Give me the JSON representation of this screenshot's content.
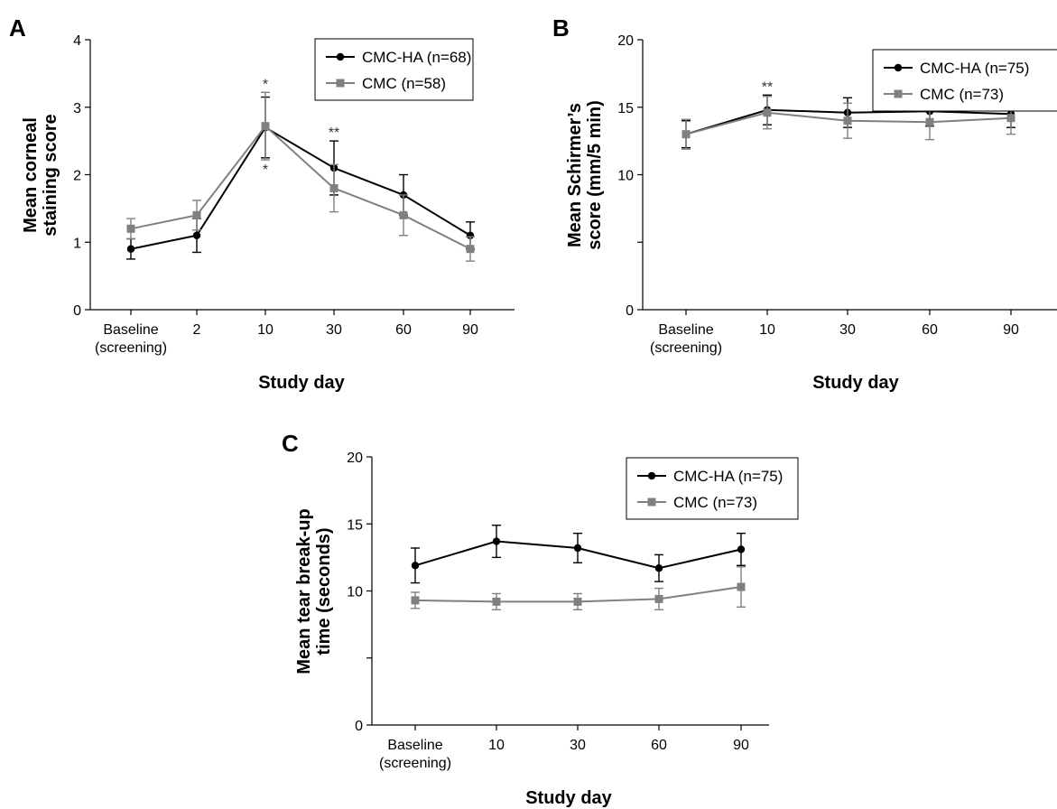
{
  "chart_data": [
    {
      "panel": "A",
      "type": "line",
      "ylabel": "Mean corneal staining score",
      "xlabel": "Study day",
      "ylim": [
        0,
        4
      ],
      "yticks": [
        0,
        1,
        2,
        3,
        4
      ],
      "categories": [
        "Baseline\n(screening)",
        "2",
        "10",
        "30",
        "60",
        "90"
      ],
      "legend_position": "top-right",
      "series": [
        {
          "name": "CMC-HA (n=68)",
          "color": "#000000",
          "marker": "circle",
          "values": [
            0.9,
            1.1,
            2.7,
            2.1,
            1.7,
            1.1
          ],
          "err": [
            0.15,
            0.25,
            0.45,
            0.4,
            0.3,
            0.2
          ]
        },
        {
          "name": "CMC (n=58)",
          "color": "#808080",
          "marker": "square",
          "values": [
            1.2,
            1.4,
            2.72,
            1.8,
            1.4,
            0.9
          ],
          "err": [
            0.15,
            0.22,
            0.5,
            0.35,
            0.3,
            0.18
          ]
        }
      ],
      "annotations": [
        {
          "text": "*",
          "category_index": 2,
          "placement": "above"
        },
        {
          "text": "*",
          "category_index": 2,
          "placement": "below"
        },
        {
          "text": "**",
          "category_index": 3,
          "placement": "above"
        }
      ]
    },
    {
      "panel": "B",
      "type": "line",
      "ylabel": "Mean Schirmer’s score (mm/5 min)",
      "xlabel": "Study day",
      "ylim": [
        0,
        20
      ],
      "yticks": [
        0,
        5,
        10,
        15,
        20
      ],
      "yticks_labeled": [
        0,
        10,
        15,
        20
      ],
      "categories": [
        "Baseline\n(screening)",
        "10",
        "30",
        "60",
        "90"
      ],
      "legend_position": "top-right",
      "series": [
        {
          "name": "CMC-HA (n=75)",
          "color": "#000000",
          "marker": "circle",
          "values": [
            13.0,
            14.8,
            14.6,
            14.7,
            14.5
          ],
          "err": [
            1.0,
            1.1,
            1.1,
            1.1,
            1.0
          ]
        },
        {
          "name": "CMC (n=73)",
          "color": "#808080",
          "marker": "square",
          "values": [
            13.0,
            14.6,
            14.0,
            13.9,
            14.2
          ],
          "err": [
            1.1,
            1.2,
            1.3,
            1.3,
            1.2
          ]
        }
      ],
      "annotations": [
        {
          "text": "**",
          "category_index": 1,
          "placement": "above"
        }
      ]
    },
    {
      "panel": "C",
      "type": "line",
      "ylabel": "Mean tear break-up time (seconds)",
      "xlabel": "Study day",
      "ylim": [
        0,
        20
      ],
      "yticks": [
        0,
        5,
        10,
        15,
        20
      ],
      "yticks_labeled": [
        0,
        10,
        15,
        20
      ],
      "categories": [
        "Baseline\n(screening)",
        "10",
        "30",
        "60",
        "90"
      ],
      "legend_position": "top-right",
      "series": [
        {
          "name": "CMC-HA (n=75)",
          "color": "#000000",
          "marker": "circle",
          "values": [
            11.9,
            13.7,
            13.2,
            11.7,
            13.1
          ],
          "err": [
            1.3,
            1.2,
            1.1,
            1.0,
            1.2
          ]
        },
        {
          "name": "CMC (n=73)",
          "color": "#808080",
          "marker": "square",
          "values": [
            9.3,
            9.2,
            9.2,
            9.4,
            10.3
          ],
          "err": [
            0.6,
            0.6,
            0.6,
            0.8,
            1.5
          ]
        }
      ],
      "annotations": []
    }
  ]
}
